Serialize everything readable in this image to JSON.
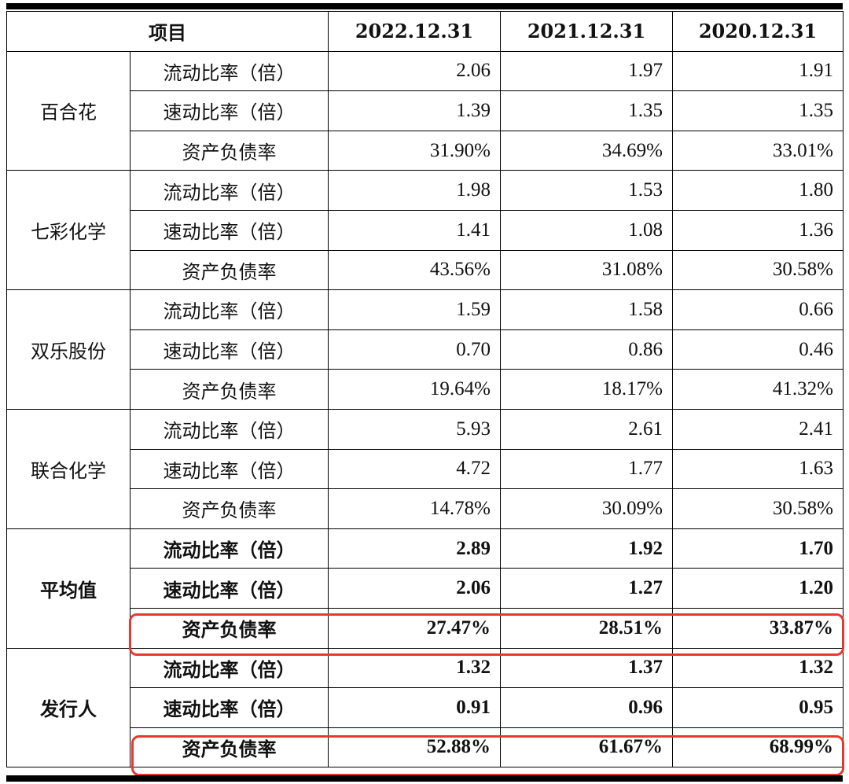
{
  "header": {
    "item_label": "项目",
    "periods": [
      "2022.12.31",
      "2021.12.31",
      "2020.12.31"
    ]
  },
  "groups": [
    {
      "company": "百合花",
      "bold": false,
      "rows": [
        {
          "metric": "流动比率（倍）",
          "values": [
            "2.06",
            "1.97",
            "1.91"
          ]
        },
        {
          "metric": "速动比率（倍）",
          "values": [
            "1.39",
            "1.35",
            "1.35"
          ]
        },
        {
          "metric": "资产负债率",
          "values": [
            "31.90%",
            "34.69%",
            "33.01%"
          ]
        }
      ]
    },
    {
      "company": "七彩化学",
      "bold": false,
      "rows": [
        {
          "metric": "流动比率（倍）",
          "values": [
            "1.98",
            "1.53",
            "1.80"
          ]
        },
        {
          "metric": "速动比率（倍）",
          "values": [
            "1.41",
            "1.08",
            "1.36"
          ]
        },
        {
          "metric": "资产负债率",
          "values": [
            "43.56%",
            "31.08%",
            "30.58%"
          ]
        }
      ]
    },
    {
      "company": "双乐股份",
      "bold": false,
      "rows": [
        {
          "metric": "流动比率（倍）",
          "values": [
            "1.59",
            "1.58",
            "0.66"
          ]
        },
        {
          "metric": "速动比率（倍）",
          "values": [
            "0.70",
            "0.86",
            "0.46"
          ]
        },
        {
          "metric": "资产负债率",
          "values": [
            "19.64%",
            "18.17%",
            "41.32%"
          ]
        }
      ]
    },
    {
      "company": "联合化学",
      "bold": false,
      "rows": [
        {
          "metric": "流动比率（倍）",
          "values": [
            "5.93",
            "2.61",
            "2.41"
          ]
        },
        {
          "metric": "速动比率（倍）",
          "values": [
            "4.72",
            "1.77",
            "1.63"
          ]
        },
        {
          "metric": "资产负债率",
          "values": [
            "14.78%",
            "30.09%",
            "30.58%"
          ]
        }
      ]
    },
    {
      "company": "平均值",
      "bold": true,
      "rows": [
        {
          "metric": "流动比率（倍）",
          "values": [
            "2.89",
            "1.92",
            "1.70"
          ]
        },
        {
          "metric": "速动比率（倍）",
          "values": [
            "2.06",
            "1.27",
            "1.20"
          ]
        },
        {
          "metric": "资产负债率",
          "values": [
            "27.47%",
            "28.51%",
            "33.87%"
          ]
        }
      ]
    },
    {
      "company": "发行人",
      "bold": true,
      "rows": [
        {
          "metric": "流动比率（倍）",
          "values": [
            "1.32",
            "1.37",
            "1.32"
          ]
        },
        {
          "metric": "速动比率（倍）",
          "values": [
            "0.91",
            "0.96",
            "0.95"
          ]
        },
        {
          "metric": "资产负债率",
          "values": [
            "52.88%",
            "61.67%",
            "68.99%"
          ]
        }
      ]
    }
  ],
  "highlight_color": "#e8382e"
}
